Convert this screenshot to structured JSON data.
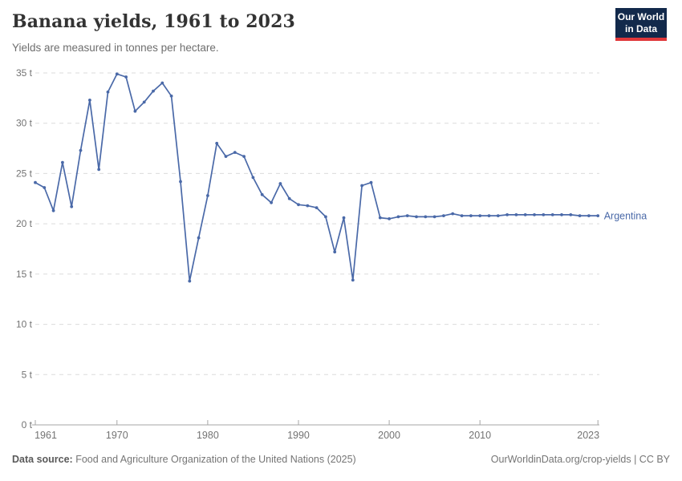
{
  "header": {
    "title": "Banana yields, 1961 to 2023",
    "subtitle": "Yields are measured in tonnes per hectare."
  },
  "logo": {
    "line1": "Our World",
    "line2": "in Data"
  },
  "chart_data": {
    "type": "line",
    "title": "Banana yields, 1961 to 2023",
    "ylabel": "tonnes per hectare",
    "unit_suffix": " t",
    "xlim": [
      1961,
      2023
    ],
    "ylim": [
      0,
      35
    ],
    "x_ticks": [
      1961,
      1970,
      1980,
      1990,
      2000,
      2010,
      2023
    ],
    "y_ticks": [
      0,
      5,
      10,
      15,
      20,
      25,
      30,
      35
    ],
    "grid": "horizontal-dashed",
    "legend_position": "end-of-line-label",
    "series": [
      {
        "name": "Argentina",
        "color": "#4A69A8",
        "x": [
          1961,
          1962,
          1963,
          1964,
          1965,
          1966,
          1967,
          1968,
          1969,
          1970,
          1971,
          1972,
          1973,
          1974,
          1975,
          1976,
          1977,
          1978,
          1979,
          1980,
          1981,
          1982,
          1983,
          1984,
          1985,
          1986,
          1987,
          1988,
          1989,
          1990,
          1991,
          1992,
          1993,
          1994,
          1995,
          1996,
          1997,
          1998,
          1999,
          2000,
          2001,
          2002,
          2003,
          2004,
          2005,
          2006,
          2007,
          2008,
          2009,
          2010,
          2011,
          2012,
          2013,
          2014,
          2015,
          2016,
          2017,
          2018,
          2019,
          2020,
          2021,
          2022,
          2023
        ],
        "values": [
          24.1,
          23.6,
          21.3,
          26.1,
          21.7,
          27.3,
          32.3,
          25.4,
          33.1,
          34.9,
          34.6,
          31.2,
          32.1,
          33.2,
          34.0,
          32.7,
          24.2,
          14.3,
          18.6,
          22.8,
          28.0,
          26.7,
          27.1,
          26.7,
          24.6,
          22.9,
          22.1,
          24.0,
          22.5,
          21.9,
          21.8,
          21.6,
          20.7,
          17.2,
          20.6,
          14.4,
          23.8,
          24.1,
          20.6,
          20.5,
          20.7,
          20.8,
          20.7,
          20.7,
          20.7,
          20.8,
          21.0,
          20.8,
          20.8,
          20.8,
          20.8,
          20.8,
          20.9,
          20.9,
          20.9,
          20.9,
          20.9,
          20.9,
          20.9,
          20.9,
          20.8,
          20.8,
          20.8
        ]
      }
    ]
  },
  "colors": {
    "line": "#4A69A8",
    "grid": "#DBDBDB",
    "axis": "#A6A6A6",
    "tick_text": "#737373",
    "logo_bg": "#12294B",
    "logo_accent": "#E0373A"
  },
  "footer": {
    "source_label": "Data source:",
    "source_text": " Food and Agriculture Organization of the United Nations (2025)",
    "rights": "OurWorldinData.org/crop-yields | CC BY"
  }
}
